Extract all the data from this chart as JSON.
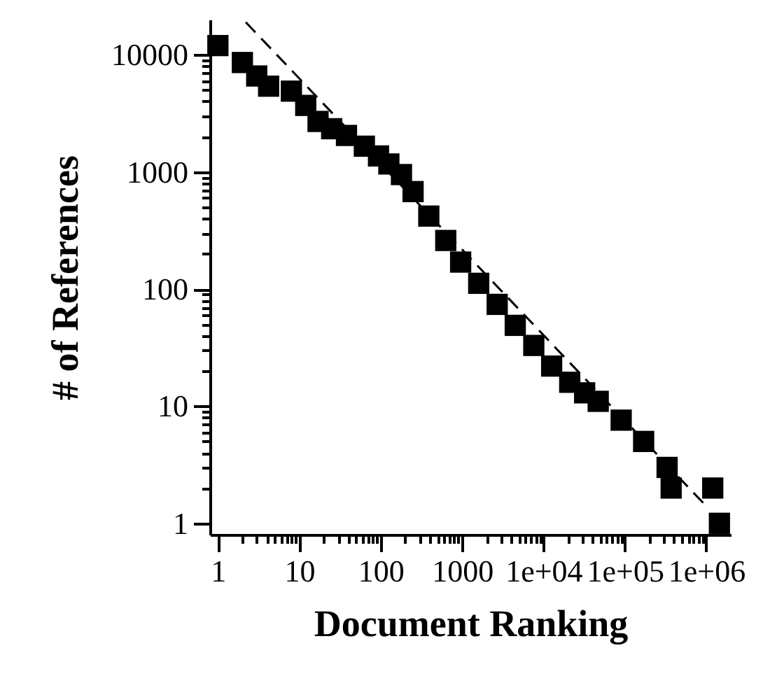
{
  "chart_data": {
    "type": "scatter",
    "xlabel": "Document Ranking",
    "ylabel": "# of References",
    "log": "xy",
    "xlim": [
      0.8,
      2000000
    ],
    "ylim": [
      0.8,
      20000
    ],
    "xticks": [
      1,
      {
        "value": 2,
        "label": null
      },
      {
        "value": 3,
        "label": null
      },
      {
        "value": 4,
        "label": null
      },
      {
        "value": 5,
        "label": null
      },
      {
        "value": 6,
        "label": null
      },
      {
        "value": 7,
        "label": null
      },
      {
        "value": 8,
        "label": null
      },
      {
        "value": 9,
        "label": null
      },
      10,
      {
        "value": 20,
        "label": null
      },
      {
        "value": 30,
        "label": null
      },
      {
        "value": 40,
        "label": null
      },
      {
        "value": 50,
        "label": null
      },
      {
        "value": 60,
        "label": null
      },
      {
        "value": 70,
        "label": null
      },
      {
        "value": 80,
        "label": null
      },
      {
        "value": 90,
        "label": null
      },
      100,
      {
        "value": 200,
        "label": null
      },
      {
        "value": 300,
        "label": null
      },
      {
        "value": 400,
        "label": null
      },
      {
        "value": 500,
        "label": null
      },
      {
        "value": 600,
        "label": null
      },
      {
        "value": 700,
        "label": null
      },
      {
        "value": 800,
        "label": null
      },
      {
        "value": 900,
        "label": null
      },
      1000,
      {
        "value": 2000,
        "label": null
      },
      {
        "value": 3000,
        "label": null
      },
      {
        "value": 4000,
        "label": null
      },
      {
        "value": 5000,
        "label": null
      },
      {
        "value": 6000,
        "label": null
      },
      {
        "value": 7000,
        "label": null
      },
      {
        "value": 8000,
        "label": null
      },
      {
        "value": 9000,
        "label": null
      },
      {
        "value": 10000,
        "label": "1e+04"
      },
      {
        "value": 20000,
        "label": null
      },
      {
        "value": 30000,
        "label": null
      },
      {
        "value": 40000,
        "label": null
      },
      {
        "value": 50000,
        "label": null
      },
      {
        "value": 60000,
        "label": null
      },
      {
        "value": 70000,
        "label": null
      },
      {
        "value": 80000,
        "label": null
      },
      {
        "value": 90000,
        "label": null
      },
      {
        "value": 100000,
        "label": "1e+05"
      },
      {
        "value": 200000,
        "label": null
      },
      {
        "value": 300000,
        "label": null
      },
      {
        "value": 400000,
        "label": null
      },
      {
        "value": 500000,
        "label": null
      },
      {
        "value": 600000,
        "label": null
      },
      {
        "value": 700000,
        "label": null
      },
      {
        "value": 800000,
        "label": null
      },
      {
        "value": 900000,
        "label": null
      },
      {
        "value": 1000000,
        "label": "1e+06"
      }
    ],
    "yticks": [
      1,
      {
        "value": 2,
        "label": null
      },
      {
        "value": 3,
        "label": null
      },
      {
        "value": 4,
        "label": null
      },
      {
        "value": 5,
        "label": null
      },
      {
        "value": 6,
        "label": null
      },
      {
        "value": 7,
        "label": null
      },
      {
        "value": 8,
        "label": null
      },
      {
        "value": 9,
        "label": null
      },
      10,
      {
        "value": 20,
        "label": null
      },
      {
        "value": 30,
        "label": null
      },
      {
        "value": 40,
        "label": null
      },
      {
        "value": 50,
        "label": null
      },
      {
        "value": 60,
        "label": null
      },
      {
        "value": 70,
        "label": null
      },
      {
        "value": 80,
        "label": null
      },
      {
        "value": 90,
        "label": null
      },
      100,
      {
        "value": 200,
        "label": null
      },
      {
        "value": 300,
        "label": null
      },
      {
        "value": 400,
        "label": null
      },
      {
        "value": 500,
        "label": null
      },
      {
        "value": 600,
        "label": null
      },
      {
        "value": 700,
        "label": null
      },
      {
        "value": 800,
        "label": null
      },
      {
        "value": 900,
        "label": null
      },
      1000,
      {
        "value": 2000,
        "label": null
      },
      {
        "value": 3000,
        "label": null
      },
      {
        "value": 4000,
        "label": null
      },
      {
        "value": 5000,
        "label": null
      },
      {
        "value": 6000,
        "label": null
      },
      {
        "value": 7000,
        "label": null
      },
      {
        "value": 8000,
        "label": null
      },
      {
        "value": 9000,
        "label": null
      },
      10000
    ],
    "series": [
      {
        "marker": "square",
        "color": "#000000",
        "x": [
          1,
          2,
          3,
          4.2,
          8,
          12,
          17,
          25,
          38,
          63,
          94,
          126,
          180,
          250,
          390,
          630,
          960,
          1600,
          2700,
          4500,
          7600,
          12600,
          21000,
          32000,
          47000,
          90000,
          170000,
          330000,
          370000,
          1200000,
          1450000
        ],
        "values": [
          12000,
          8600,
          6600,
          5400,
          4900,
          3700,
          2700,
          2340,
          2050,
          1660,
          1370,
          1170,
          950,
          680,
          420,
          260,
          170,
          112,
          74,
          49,
          33,
          22,
          16,
          13,
          11,
          7.6,
          5,
          3,
          2,
          2,
          1
        ]
      },
      {
        "type": "line",
        "line_style": "dashed",
        "color": "#000000",
        "x": [
          2.2,
          1000000
        ],
        "values": [
          19000,
          1.4
        ]
      }
    ]
  }
}
